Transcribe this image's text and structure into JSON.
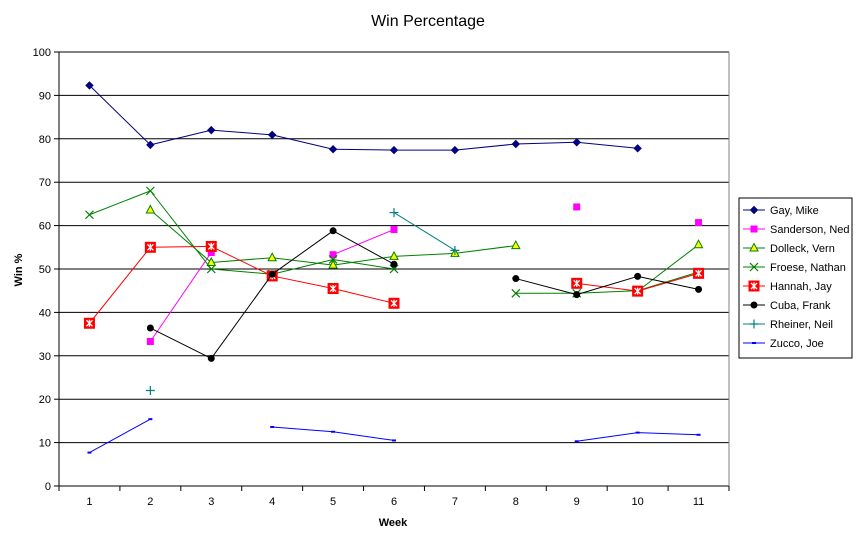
{
  "chart_data": {
    "type": "line",
    "title": "Win Percentage",
    "xlabel": "Week",
    "ylabel": "Win %",
    "x": [
      1,
      2,
      3,
      4,
      5,
      6,
      7,
      8,
      9,
      10,
      11
    ],
    "x_tick_labels": [
      "1",
      "2",
      "3",
      "4",
      "5",
      "6",
      "7",
      "8",
      "9",
      "10",
      "11"
    ],
    "ylim": [
      0,
      100
    ],
    "y_ticks": [
      0,
      10,
      20,
      30,
      40,
      50,
      60,
      70,
      80,
      90,
      100
    ],
    "grid": "horizontal",
    "legend_position": "right",
    "series": [
      {
        "name": "Gay, Mike",
        "color": "#000080",
        "marker": "diamond",
        "values": [
          92.3,
          78.6,
          82.0,
          80.9,
          77.6,
          77.4,
          77.4,
          78.8,
          79.2,
          77.8,
          null
        ]
      },
      {
        "name": "Sanderson, Ned",
        "color": "#ff00ff",
        "marker": "square",
        "values": [
          null,
          33.3,
          53.8,
          null,
          53.3,
          59.1,
          null,
          null,
          64.3,
          null,
          60.7
        ]
      },
      {
        "name": "Dolleck, Vern",
        "color": "#008000",
        "marker": "triangle",
        "values": [
          null,
          63.6,
          51.5,
          52.6,
          50.9,
          52.9,
          53.6,
          55.4,
          null,
          44.9,
          55.6
        ]
      },
      {
        "name": "Froese, Nathan",
        "color": "#008000",
        "marker": "x",
        "values": [
          62.5,
          68.0,
          50.0,
          48.8,
          52.2,
          50.0,
          null,
          44.4,
          44.4,
          45.0,
          49.3
        ]
      },
      {
        "name": "Hannah, Jay",
        "color": "#ff0000",
        "marker": "boxstar",
        "values": [
          37.5,
          55.0,
          55.2,
          48.4,
          45.5,
          42.1,
          null,
          null,
          46.7,
          44.9,
          49.0
        ]
      },
      {
        "name": "Cuba, Frank",
        "color": "#000000",
        "marker": "circle",
        "values": [
          null,
          36.4,
          29.4,
          48.8,
          58.8,
          51.1,
          null,
          47.8,
          44.1,
          48.3,
          45.3
        ]
      },
      {
        "name": "Rheiner, Neil",
        "color": "#008080",
        "marker": "plus",
        "values": [
          null,
          22.0,
          null,
          null,
          null,
          63.0,
          54.3,
          null,
          null,
          null,
          null
        ]
      },
      {
        "name": "Zucco, Joe",
        "color": "#0000ff",
        "marker": "dash",
        "values": [
          7.7,
          15.4,
          null,
          13.6,
          12.5,
          10.5,
          null,
          null,
          10.3,
          12.3,
          11.8
        ]
      }
    ]
  }
}
